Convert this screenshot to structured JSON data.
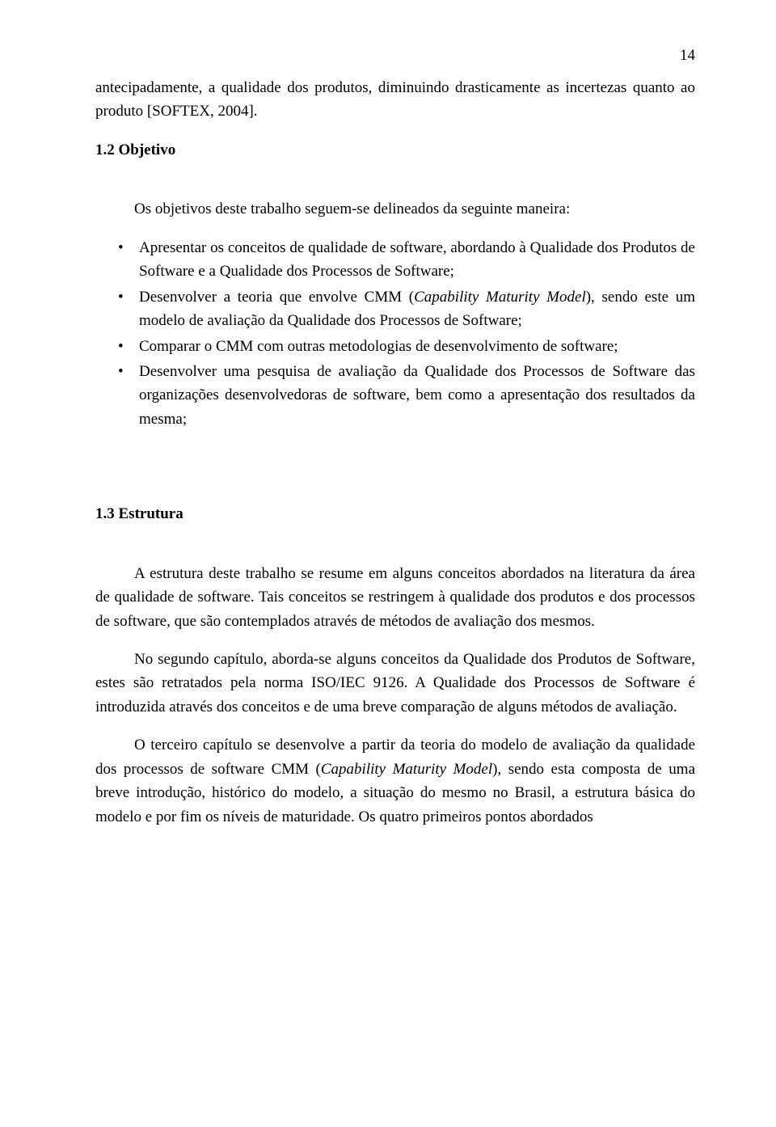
{
  "page_number": "14",
  "p_intro_cont": "antecipadamente, a qualidade dos produtos, diminuindo drasticamente as incertezas quanto ao produto [SOFTEX, 2004].",
  "h_objetivo": "1.2 Objetivo",
  "p_objetivo_lead": "Os objetivos deste trabalho seguem-se delineados da seguinte maneira:",
  "bullets": [
    "Apresentar os conceitos de qualidade de software, abordando à Qualidade dos Produtos de Software e a Qualidade dos Processos de Software;",
    "Desenvolver a teoria que envolve CMM (Capability Maturity Model), sendo este um modelo de avaliação da Qualidade dos Processos de Software;",
    "Comparar o CMM com outras metodologias de desenvolvimento de software;",
    "Desenvolver uma pesquisa de avaliação da Qualidade dos Processos de Software das organizações desenvolvedoras de software, bem como a apresentação dos resultados da mesma;"
  ],
  "h_estrutura": "1.3 Estrutura",
  "p_estrutura_1": "A estrutura deste trabalho se resume em alguns conceitos abordados na literatura da área de qualidade de software. Tais conceitos se restringem à qualidade dos produtos e dos processos de software, que são contemplados através de métodos de avaliação dos mesmos.",
  "p_estrutura_2": "No segundo capítulo, aborda-se alguns conceitos da Qualidade dos Produtos de Software, estes são retratados pela norma ISO/IEC 9126. A Qualidade dos Processos de Software é introduzida através dos conceitos e de uma breve comparação de alguns métodos de avaliação.",
  "p_estrutura_3": "O terceiro capítulo se desenvolve a partir da teoria do modelo de avaliação da qualidade dos processos de software CMM (Capability Maturity Model), sendo esta composta de uma breve introdução, histórico do modelo, a situação do mesmo no Brasil, a estrutura básica do modelo e por fim os níveis de maturidade. Os quatro primeiros pontos abordados"
}
